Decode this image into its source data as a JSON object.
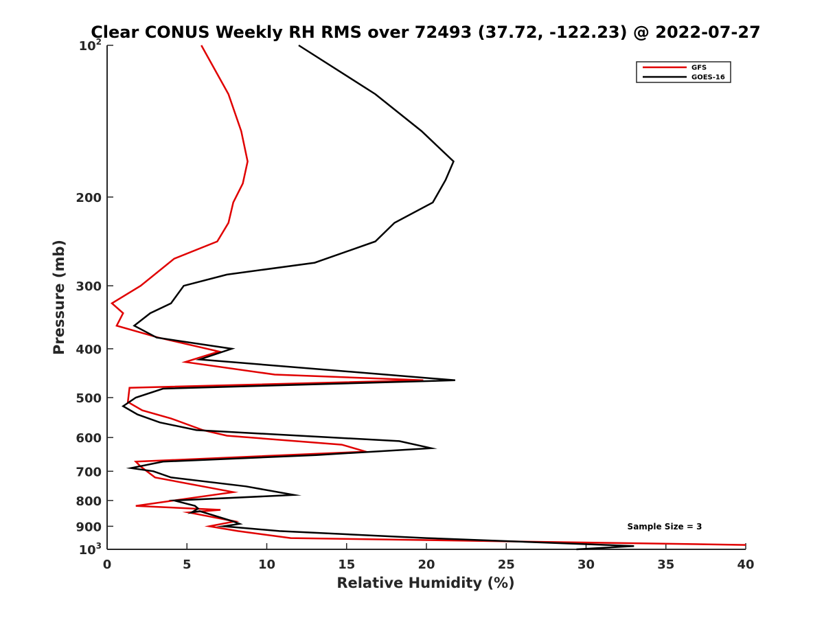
{
  "chart_data": {
    "type": "line",
    "title": "Clear CONUS Weekly RH RMS over 72493 (37.72, -122.23) @ 2022-07-27",
    "xlabel": "Relative Humidity (%)",
    "ylabel": "Pressure (mb)",
    "xlim": [
      0,
      40
    ],
    "ylim": [
      100,
      1000
    ],
    "y_scale": "log",
    "y_reversed": true,
    "x_ticks": [
      "0",
      "5",
      "10",
      "15",
      "20",
      "25",
      "30",
      "35",
      "40"
    ],
    "y_ticks": [
      {
        "value": 100,
        "base": "10",
        "exp": "2"
      },
      {
        "value": 200,
        "label": "200"
      },
      {
        "value": 300,
        "label": "300"
      },
      {
        "value": 400,
        "label": "400"
      },
      {
        "value": 500,
        "label": "500"
      },
      {
        "value": 600,
        "label": "600"
      },
      {
        "value": 700,
        "label": "700"
      },
      {
        "value": 800,
        "label": "800"
      },
      {
        "value": 900,
        "label": "900"
      },
      {
        "value": 1000,
        "base": "10",
        "exp": "3"
      }
    ],
    "legend_position": "top-right",
    "series": [
      {
        "name": "GFS",
        "color": "#e00000",
        "x": [
          5.9,
          7.6,
          8.4,
          8.8,
          8.5,
          7.9,
          7.6,
          6.9,
          4.2,
          2.1,
          0.3,
          1.0,
          0.6,
          3.2,
          7.0,
          4.9,
          10.5,
          19.8,
          1.4,
          1.3,
          2.2,
          4.0,
          6.0,
          7.5,
          14.7,
          16.2,
          1.8,
          2.1,
          3.0,
          7.9,
          1.8,
          7.1,
          5.1,
          8.0,
          6.4,
          8.2,
          11.5,
          40.0
        ],
        "y": [
          100,
          125,
          148,
          170,
          188,
          205,
          225,
          245,
          265,
          300,
          325,
          340,
          360,
          380,
          405,
          425,
          450,
          462,
          478,
          510,
          530,
          550,
          580,
          595,
          620,
          640,
          670,
          685,
          720,
          770,
          820,
          835,
          845,
          880,
          900,
          920,
          950,
          980
        ]
      },
      {
        "name": "GOES-16",
        "color": "#000000",
        "x": [
          12.0,
          16.8,
          19.7,
          21.7,
          21.2,
          20.4,
          18.0,
          16.8,
          13.0,
          7.5,
          4.8,
          4.0,
          2.7,
          1.7,
          3.1,
          7.8,
          5.8,
          21.8,
          3.5,
          1.8,
          1.0,
          1.9,
          3.3,
          5.6,
          18.3,
          20.3,
          13.1,
          3.5,
          1.5,
          2.9,
          4.0,
          8.7,
          11.7,
          4.2,
          5.5,
          5.7,
          5.3,
          5.8,
          7.9,
          8.3,
          7.3,
          10.8,
          20.0,
          33.0,
          29.4
        ],
        "y": [
          100,
          125,
          148,
          170,
          185,
          205,
          225,
          245,
          270,
          285,
          300,
          325,
          340,
          360,
          380,
          400,
          420,
          462,
          480,
          500,
          520,
          540,
          560,
          580,
          610,
          630,
          650,
          670,
          690,
          700,
          720,
          750,
          780,
          800,
          820,
          830,
          845,
          840,
          880,
          890,
          900,
          920,
          950,
          985,
          1000
        ]
      }
    ],
    "annotations": [
      {
        "text": "Sample Size = 3"
      }
    ]
  }
}
